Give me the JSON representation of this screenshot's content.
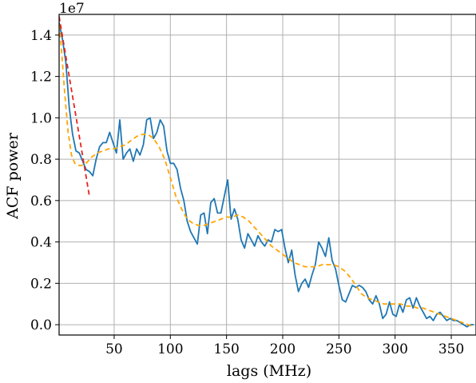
{
  "chart_data": {
    "type": "line",
    "title": "",
    "xlabel": "lags (MHz)",
    "ylabel": "ACF power",
    "y_offset_label": "1e7",
    "xlim": [
      1,
      372
    ],
    "ylim": [
      -0.05,
      1.5
    ],
    "y_scale_factor": 10000000,
    "grid": true,
    "legend": "none",
    "x_ticks": [
      50,
      100,
      150,
      200,
      250,
      300,
      350
    ],
    "x_tick_labels": [
      "50",
      "100",
      "150",
      "200",
      "250",
      "300",
      "350"
    ],
    "y_ticks": [
      0.0,
      0.2,
      0.4,
      0.6,
      0.8,
      1.0,
      1.2,
      1.4
    ],
    "y_tick_labels": [
      "0.0",
      "0.2",
      "0.4",
      "0.6",
      "0.8",
      "1.0",
      "1.2",
      "1.4"
    ],
    "series": [
      {
        "style": "solid",
        "color": "#1f77b4",
        "x": [
          1,
          4,
          7,
          10,
          13,
          16,
          19,
          22,
          25,
          28,
          31,
          34,
          37,
          40,
          43,
          46,
          49,
          52,
          55,
          58,
          61,
          64,
          67,
          70,
          73,
          76,
          79,
          82,
          85,
          88,
          91,
          94,
          97,
          100,
          103,
          106,
          109,
          112,
          115,
          118,
          121,
          124,
          127,
          130,
          133,
          136,
          139,
          142,
          145,
          148,
          151,
          154,
          157,
          160,
          163,
          166,
          169,
          172,
          175,
          178,
          181,
          184,
          187,
          190,
          193,
          196,
          199,
          202,
          205,
          208,
          211,
          214,
          217,
          220,
          223,
          226,
          229,
          232,
          235,
          238,
          241,
          244,
          247,
          250,
          253,
          256,
          259,
          262,
          265,
          268,
          271,
          274,
          277,
          280,
          283,
          286,
          289,
          292,
          295,
          298,
          301,
          304,
          307,
          310,
          313,
          316,
          319,
          322,
          325,
          328,
          331,
          334,
          337,
          340,
          343,
          346,
          349,
          352,
          355,
          358,
          361,
          364,
          367,
          370
        ],
        "y": [
          1.46,
          1.38,
          1.27,
          1.05,
          0.92,
          0.84,
          0.83,
          0.79,
          0.75,
          0.74,
          0.72,
          0.8,
          0.86,
          0.88,
          0.88,
          0.93,
          0.88,
          0.83,
          0.99,
          0.8,
          0.83,
          0.85,
          0.79,
          0.85,
          0.82,
          0.87,
          0.99,
          1.0,
          0.9,
          0.93,
          0.99,
          0.96,
          0.84,
          0.78,
          0.78,
          0.75,
          0.66,
          0.6,
          0.5,
          0.45,
          0.42,
          0.39,
          0.53,
          0.54,
          0.44,
          0.59,
          0.61,
          0.54,
          0.54,
          0.62,
          0.7,
          0.51,
          0.56,
          0.51,
          0.41,
          0.37,
          0.44,
          0.41,
          0.38,
          0.43,
          0.4,
          0.38,
          0.41,
          0.4,
          0.46,
          0.45,
          0.46,
          0.37,
          0.3,
          0.36,
          0.24,
          0.16,
          0.2,
          0.22,
          0.18,
          0.24,
          0.29,
          0.4,
          0.37,
          0.33,
          0.42,
          0.31,
          0.27,
          0.19,
          0.12,
          0.11,
          0.15,
          0.19,
          0.18,
          0.19,
          0.18,
          0.16,
          0.12,
          0.1,
          0.14,
          0.1,
          0.03,
          0.05,
          0.11,
          0.05,
          0.04,
          0.1,
          0.06,
          0.12,
          0.13,
          0.08,
          0.13,
          0.09,
          0.06,
          0.03,
          0.04,
          0.02,
          0.05,
          0.06,
          0.04,
          0.02,
          0.03,
          0.02,
          0.02,
          0.01,
          0.0,
          -0.01,
          0.0,
          0.0
        ]
      },
      {
        "style": "dashed",
        "color": "#ffa500",
        "x": [
          1,
          3,
          6,
          9,
          12,
          15,
          18,
          21,
          25,
          30,
          35,
          40,
          45,
          50,
          55,
          60,
          65,
          70,
          75,
          80,
          85,
          90,
          95,
          100,
          105,
          110,
          115,
          120,
          125,
          130,
          135,
          140,
          145,
          150,
          155,
          160,
          165,
          170,
          175,
          180,
          185,
          190,
          195,
          200,
          205,
          210,
          215,
          220,
          225,
          230,
          235,
          240,
          245,
          250,
          255,
          260,
          265,
          270,
          275,
          280,
          285,
          290,
          295,
          300,
          305,
          310,
          315,
          320,
          325,
          330,
          335,
          340,
          345,
          350,
          355,
          360,
          365,
          370
        ],
        "y": [
          1.45,
          1.34,
          1.12,
          0.93,
          0.82,
          0.78,
          0.77,
          0.77,
          0.78,
          0.81,
          0.83,
          0.84,
          0.85,
          0.85,
          0.86,
          0.87,
          0.89,
          0.91,
          0.92,
          0.92,
          0.9,
          0.86,
          0.8,
          0.71,
          0.62,
          0.56,
          0.51,
          0.49,
          0.48,
          0.48,
          0.49,
          0.5,
          0.51,
          0.52,
          0.52,
          0.53,
          0.52,
          0.5,
          0.47,
          0.44,
          0.41,
          0.38,
          0.36,
          0.34,
          0.32,
          0.3,
          0.29,
          0.28,
          0.28,
          0.28,
          0.29,
          0.29,
          0.29,
          0.28,
          0.26,
          0.23,
          0.19,
          0.15,
          0.13,
          0.12,
          0.11,
          0.1,
          0.1,
          0.1,
          0.1,
          0.09,
          0.09,
          0.08,
          0.08,
          0.07,
          0.06,
          0.05,
          0.04,
          0.03,
          0.02,
          0.01,
          0.0,
          -0.01
        ]
      },
      {
        "style": "dashed",
        "color": "#e8231b",
        "x": [
          1,
          28
        ],
        "y": [
          1.49,
          0.62
        ]
      }
    ]
  }
}
